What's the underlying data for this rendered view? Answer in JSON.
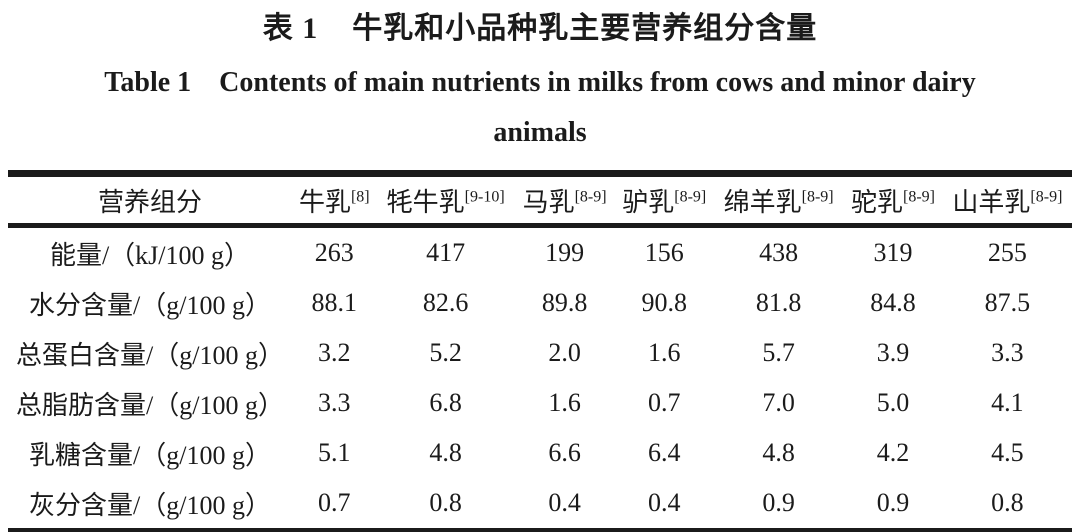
{
  "caption": {
    "zh_label": "表 1",
    "zh_text": "牛乳和小品种乳主要营养组分含量",
    "en_label": "Table 1",
    "en_text": "Contents of main nutrients in milks from cows and minor dairy animals"
  },
  "table": {
    "row_header": "营养组分",
    "columns": [
      {
        "label": "牛乳",
        "ref": "[8]"
      },
      {
        "label": "牦牛乳",
        "ref": "[9-10]"
      },
      {
        "label": "马乳",
        "ref": "[8-9]"
      },
      {
        "label": "驴乳",
        "ref": "[8-9]"
      },
      {
        "label": "绵羊乳",
        "ref": "[8-9]"
      },
      {
        "label": "驼乳",
        "ref": "[8-9]"
      },
      {
        "label": "山羊乳",
        "ref": "[8-9]"
      }
    ],
    "rows": [
      {
        "label": "能量/（kJ/100 g）",
        "values": [
          "263",
          "417",
          "199",
          "156",
          "438",
          "319",
          "255"
        ]
      },
      {
        "label": "水分含量/（g/100 g）",
        "values": [
          "88.1",
          "82.6",
          "89.8",
          "90.8",
          "81.8",
          "84.8",
          "87.5"
        ]
      },
      {
        "label": "总蛋白含量/（g/100 g）",
        "values": [
          "3.2",
          "5.2",
          "2.0",
          "1.6",
          "5.7",
          "3.9",
          "3.3"
        ]
      },
      {
        "label": "总脂肪含量/（g/100 g）",
        "values": [
          "3.3",
          "6.8",
          "1.6",
          "0.7",
          "7.0",
          "5.0",
          "4.1"
        ]
      },
      {
        "label": "乳糖含量/（g/100 g）",
        "values": [
          "5.1",
          "4.8",
          "6.6",
          "6.4",
          "4.8",
          "4.2",
          "4.5"
        ]
      },
      {
        "label": "灰分含量/（g/100 g）",
        "values": [
          "0.7",
          "0.8",
          "0.4",
          "0.4",
          "0.9",
          "0.9",
          "0.8"
        ]
      }
    ]
  },
  "colors": {
    "text": "#1b1b1b",
    "background": "#ffffff",
    "rule": "#1b1b1b"
  }
}
